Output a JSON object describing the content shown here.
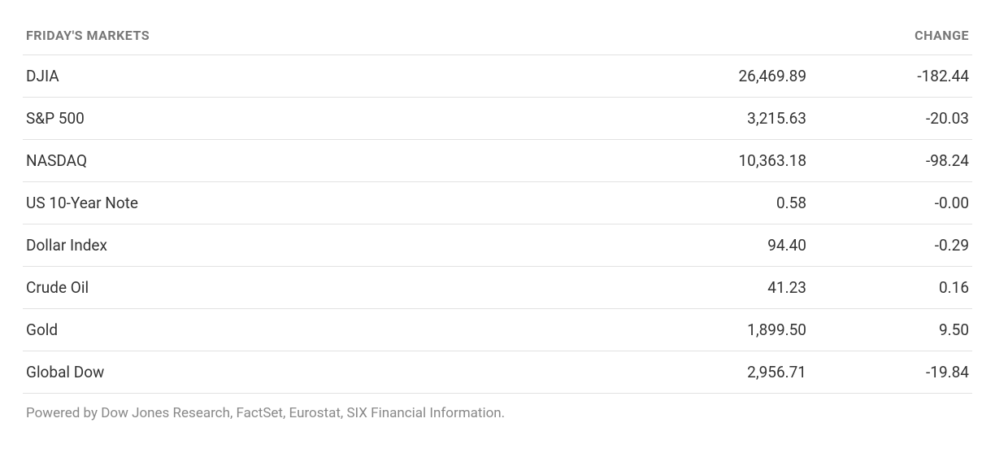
{
  "table": {
    "type": "table",
    "header": {
      "title": "FRIDAY'S MARKETS",
      "change": "CHANGE"
    },
    "header_style": {
      "color": "#777777",
      "fontsize_pt": 12,
      "font_weight": 700
    },
    "row_style": {
      "color": "#333333",
      "fontsize_pt": 14,
      "border_color": "#e2e2e2"
    },
    "columns": [
      "name",
      "value",
      "change"
    ],
    "column_align": [
      "left",
      "right",
      "right"
    ],
    "rows": [
      {
        "name": "DJIA",
        "value": "26,469.89",
        "change": "-182.44"
      },
      {
        "name": "S&P 500",
        "value": "3,215.63",
        "change": "-20.03"
      },
      {
        "name": "NASDAQ",
        "value": "10,363.18",
        "change": "-98.24"
      },
      {
        "name": "US 10-Year Note",
        "value": "0.58",
        "change": "-0.00"
      },
      {
        "name": "Dollar Index",
        "value": "94.40",
        "change": "-0.29"
      },
      {
        "name": "Crude Oil",
        "value": "41.23",
        "change": "0.16"
      },
      {
        "name": "Gold",
        "value": "1,899.50",
        "change": "9.50"
      },
      {
        "name": "Global Dow",
        "value": "2,956.71",
        "change": "-19.84"
      }
    ],
    "background_color": "#ffffff"
  },
  "footer": {
    "text": "Powered by Dow Jones Research, FactSet, Eurostat, SIX Financial Information.",
    "color": "#888888",
    "fontsize_pt": 13
  }
}
